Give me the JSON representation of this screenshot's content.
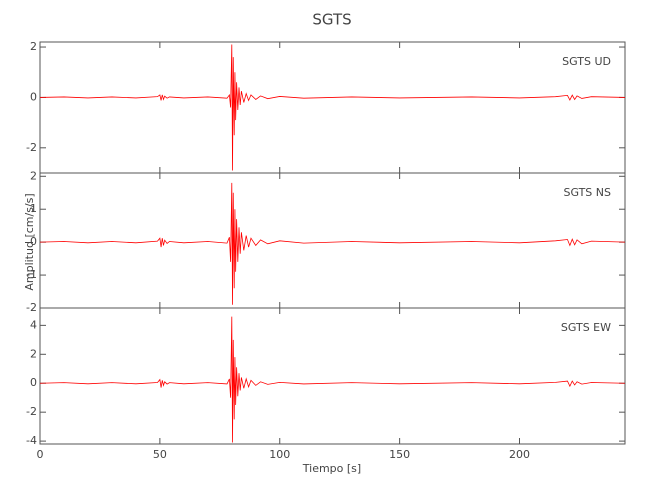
{
  "chart_data": [
    {
      "type": "line",
      "title": "SGTS",
      "annotation": "SGTS   UD",
      "x": [
        0,
        10,
        20,
        30,
        40,
        49,
        50,
        50.5,
        51,
        51.5,
        52,
        53,
        54,
        60,
        70,
        78,
        79,
        79.5,
        80,
        80.3,
        80.6,
        81,
        81.3,
        81.6,
        82,
        82.5,
        83,
        83.5,
        84,
        85,
        86,
        87,
        88,
        90,
        92,
        95,
        100,
        110,
        130,
        150,
        180,
        200,
        215,
        220,
        221,
        222,
        223,
        224,
        226,
        230,
        244
      ],
      "series": [
        {
          "color": "#ff0000",
          "values": [
            0,
            0.02,
            -0.02,
            0.02,
            -0.02,
            0.03,
            0.1,
            -0.12,
            0.1,
            -0.08,
            0.05,
            -0.03,
            0.02,
            -0.02,
            0.02,
            -0.03,
            0.1,
            -0.4,
            2.1,
            -2.9,
            1.6,
            -1.5,
            1.0,
            -0.9,
            0.6,
            -0.5,
            0.4,
            -0.3,
            0.25,
            -0.2,
            0.15,
            -0.12,
            0.1,
            -0.08,
            0.06,
            -0.05,
            0.04,
            -0.03,
            0.02,
            -0.02,
            0.02,
            -0.02,
            0.03,
            0.08,
            -0.1,
            0.09,
            -0.08,
            0.06,
            -0.04,
            0.03,
            0
          ]
        }
      ],
      "xlim": [
        0,
        244
      ],
      "xticks": [
        0,
        50,
        100,
        150,
        200
      ],
      "ylim": [
        -3,
        2.2
      ],
      "yticks": [
        -2,
        0,
        2
      ]
    },
    {
      "type": "line",
      "ylabel": "Amplitud [cm/s/s]",
      "annotation": "SGTS   NS",
      "x": [
        0,
        10,
        20,
        30,
        40,
        49,
        50,
        50.5,
        51,
        51.5,
        52,
        53,
        54,
        60,
        70,
        78,
        79,
        79.5,
        80,
        80.3,
        80.6,
        81,
        81.3,
        81.6,
        82,
        82.5,
        83,
        83.5,
        84,
        85,
        86,
        87,
        88,
        90,
        92,
        95,
        100,
        110,
        130,
        150,
        180,
        200,
        215,
        220,
        221,
        222,
        223,
        224,
        226,
        230,
        244
      ],
      "series": [
        {
          "color": "#ff0000",
          "values": [
            0,
            0.02,
            -0.02,
            0.02,
            -0.02,
            0.03,
            0.12,
            -0.15,
            0.12,
            -0.1,
            0.06,
            -0.04,
            0.02,
            -0.02,
            0.02,
            -0.03,
            0.15,
            -0.6,
            1.8,
            -1.9,
            1.5,
            -1.4,
            1.0,
            -0.9,
            0.7,
            -0.6,
            0.45,
            -0.35,
            0.3,
            -0.25,
            0.2,
            -0.15,
            0.12,
            -0.1,
            0.07,
            -0.05,
            0.04,
            -0.03,
            0.02,
            -0.02,
            0.02,
            -0.02,
            0.04,
            0.08,
            -0.1,
            0.09,
            -0.08,
            0.07,
            -0.05,
            0.03,
            0
          ]
        }
      ],
      "xlim": [
        0,
        244
      ],
      "xticks": [
        0,
        50,
        100,
        150,
        200
      ],
      "ylim": [
        -2,
        2.1
      ],
      "yticks": [
        -2,
        -1,
        0,
        1,
        2
      ]
    },
    {
      "type": "line",
      "xlabel": "Tiempo [s]",
      "annotation": "SGTS   EW",
      "x": [
        0,
        10,
        20,
        30,
        40,
        49,
        50,
        50.5,
        51,
        51.5,
        52,
        53,
        54,
        60,
        70,
        78,
        79,
        79.5,
        80,
        80.3,
        80.6,
        81,
        81.3,
        81.6,
        82,
        82.5,
        83,
        83.5,
        84,
        85,
        86,
        87,
        88,
        90,
        92,
        95,
        100,
        110,
        130,
        150,
        180,
        200,
        215,
        220,
        221,
        222,
        223,
        224,
        226,
        230,
        244
      ],
      "series": [
        {
          "color": "#ff0000",
          "values": [
            0,
            0.04,
            -0.04,
            0.04,
            -0.04,
            0.05,
            0.25,
            -0.3,
            0.2,
            -0.15,
            0.1,
            -0.06,
            0.04,
            -0.04,
            0.04,
            -0.05,
            0.3,
            -1.0,
            4.6,
            -4.1,
            3.0,
            -2.5,
            1.8,
            -1.5,
            1.1,
            -0.9,
            0.7,
            -0.5,
            0.4,
            -0.35,
            0.3,
            -0.25,
            0.2,
            -0.15,
            0.1,
            -0.08,
            0.06,
            -0.05,
            0.04,
            -0.04,
            0.04,
            -0.04,
            0.06,
            0.15,
            -0.2,
            0.15,
            -0.12,
            0.1,
            -0.06,
            0.05,
            0
          ]
        }
      ],
      "xlim": [
        0,
        244
      ],
      "xticks": [
        0,
        50,
        100,
        150,
        200
      ],
      "ylim": [
        -4.2,
        5.2
      ],
      "yticks": [
        -4,
        -2,
        0,
        2,
        4
      ]
    }
  ]
}
